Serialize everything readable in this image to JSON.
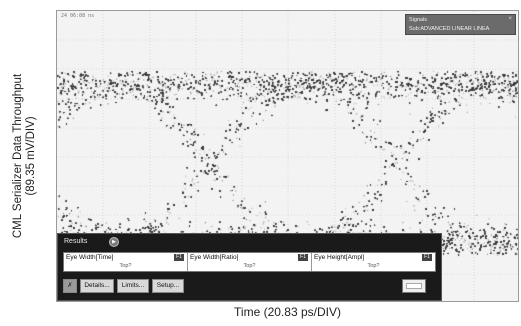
{
  "axes": {
    "y_label_line1": "CML Serializer Data Throughput",
    "y_label_line2": "(89.35 mV/DIV)",
    "x_label": "Time (20.83 ps/DIV)"
  },
  "scope": {
    "timestamp": "24 06:08 ns",
    "signals_panel": {
      "title": "Signals",
      "subtitle": "Sub:ADVANCED LINEAR LINEA",
      "close_glyph": "×"
    }
  },
  "results": {
    "tab_label": "Results",
    "measurements": [
      {
        "name": "Eye Width[Time]",
        "value": "Top?",
        "badge": "F1"
      },
      {
        "name": "Eye Width[Ratio]",
        "value": "Top?",
        "badge": "F1"
      },
      {
        "name": "Eye Height[Ampl]",
        "value": "Top?",
        "badge": "F1"
      }
    ],
    "buttons": {
      "details": "Details...",
      "limits": "Limits...",
      "setup": "Setup..."
    }
  },
  "colors": {
    "background": "#ffffff",
    "scope_background": "#f3f3f3",
    "trace": "#3a3a3a",
    "results_panel": "#1a1a1a"
  }
}
